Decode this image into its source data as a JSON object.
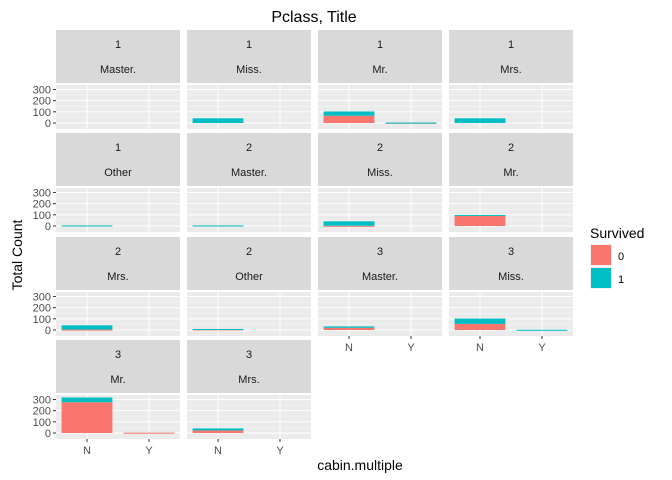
{
  "chart_data": {
    "type": "bar",
    "title": "Pclass, Title",
    "xlabel": "cabin.multiple",
    "ylabel": "Total Count",
    "categories": [
      "N",
      "Y"
    ],
    "y_ticks": [
      0,
      100,
      200,
      300
    ],
    "ylim": [
      0,
      340
    ],
    "grid": true,
    "facet_columns": 4,
    "legend": {
      "title": "Survived",
      "position": "right",
      "entries": [
        {
          "label": "0",
          "color": "#F8766D"
        },
        {
          "label": "1",
          "color": "#00BFC4"
        }
      ]
    },
    "panels": [
      {
        "pclass": "1",
        "title": "Master.",
        "bars": [
          {
            "x": "N",
            "s0": 0,
            "s1": 0
          },
          {
            "x": "Y",
            "s0": 0,
            "s1": 0
          }
        ]
      },
      {
        "pclass": "1",
        "title": "Miss.",
        "bars": [
          {
            "x": "N",
            "s0": 0,
            "s1": 42
          },
          {
            "x": "Y",
            "s0": 0,
            "s1": 0
          }
        ]
      },
      {
        "pclass": "1",
        "title": "Mr.",
        "bars": [
          {
            "x": "N",
            "s0": 65,
            "s1": 38
          },
          {
            "x": "Y",
            "s0": 2,
            "s1": 2
          }
        ]
      },
      {
        "pclass": "1",
        "title": "Mrs.",
        "bars": [
          {
            "x": "N",
            "s0": 0,
            "s1": 42
          },
          {
            "x": "Y",
            "s0": 0,
            "s1": 0
          }
        ]
      },
      {
        "pclass": "1",
        "title": "Other",
        "bars": [
          {
            "x": "N",
            "s0": 0,
            "s1": 5
          },
          {
            "x": "Y",
            "s0": 0,
            "s1": 0
          }
        ]
      },
      {
        "pclass": "2",
        "title": "Master.",
        "bars": [
          {
            "x": "N",
            "s0": 0,
            "s1": 5
          },
          {
            "x": "Y",
            "s0": 0,
            "s1": 0
          }
        ]
      },
      {
        "pclass": "2",
        "title": "Miss.",
        "bars": [
          {
            "x": "N",
            "s0": 2,
            "s1": 40
          },
          {
            "x": "Y",
            "s0": 0,
            "s1": 0
          }
        ]
      },
      {
        "pclass": "2",
        "title": "Mr.",
        "bars": [
          {
            "x": "N",
            "s0": 91,
            "s1": 8
          },
          {
            "x": "Y",
            "s0": 0,
            "s1": 0
          }
        ]
      },
      {
        "pclass": "2",
        "title": "Mrs.",
        "bars": [
          {
            "x": "N",
            "s0": 4,
            "s1": 38
          },
          {
            "x": "Y",
            "s0": 0,
            "s1": 0
          }
        ]
      },
      {
        "pclass": "2",
        "title": "Other",
        "bars": [
          {
            "x": "N",
            "s0": 6,
            "s1": 3
          },
          {
            "x": "Y",
            "s0": 0,
            "s1": 0
          }
        ]
      },
      {
        "pclass": "3",
        "title": "Master.",
        "bars": [
          {
            "x": "N",
            "s0": 20,
            "s1": 12
          },
          {
            "x": "Y",
            "s0": 0,
            "s1": 0
          }
        ]
      },
      {
        "pclass": "3",
        "title": "Miss.",
        "bars": [
          {
            "x": "N",
            "s0": 55,
            "s1": 47
          },
          {
            "x": "Y",
            "s0": 0,
            "s1": 2
          }
        ]
      },
      {
        "pclass": "3",
        "title": "Mr.",
        "bars": [
          {
            "x": "N",
            "s0": 275,
            "s1": 43
          },
          {
            "x": "Y",
            "s0": 3,
            "s1": 0
          }
        ]
      },
      {
        "pclass": "3",
        "title": "Mrs.",
        "bars": [
          {
            "x": "N",
            "s0": 23,
            "s1": 18
          },
          {
            "x": "Y",
            "s0": 0,
            "s1": 0
          }
        ]
      }
    ]
  }
}
